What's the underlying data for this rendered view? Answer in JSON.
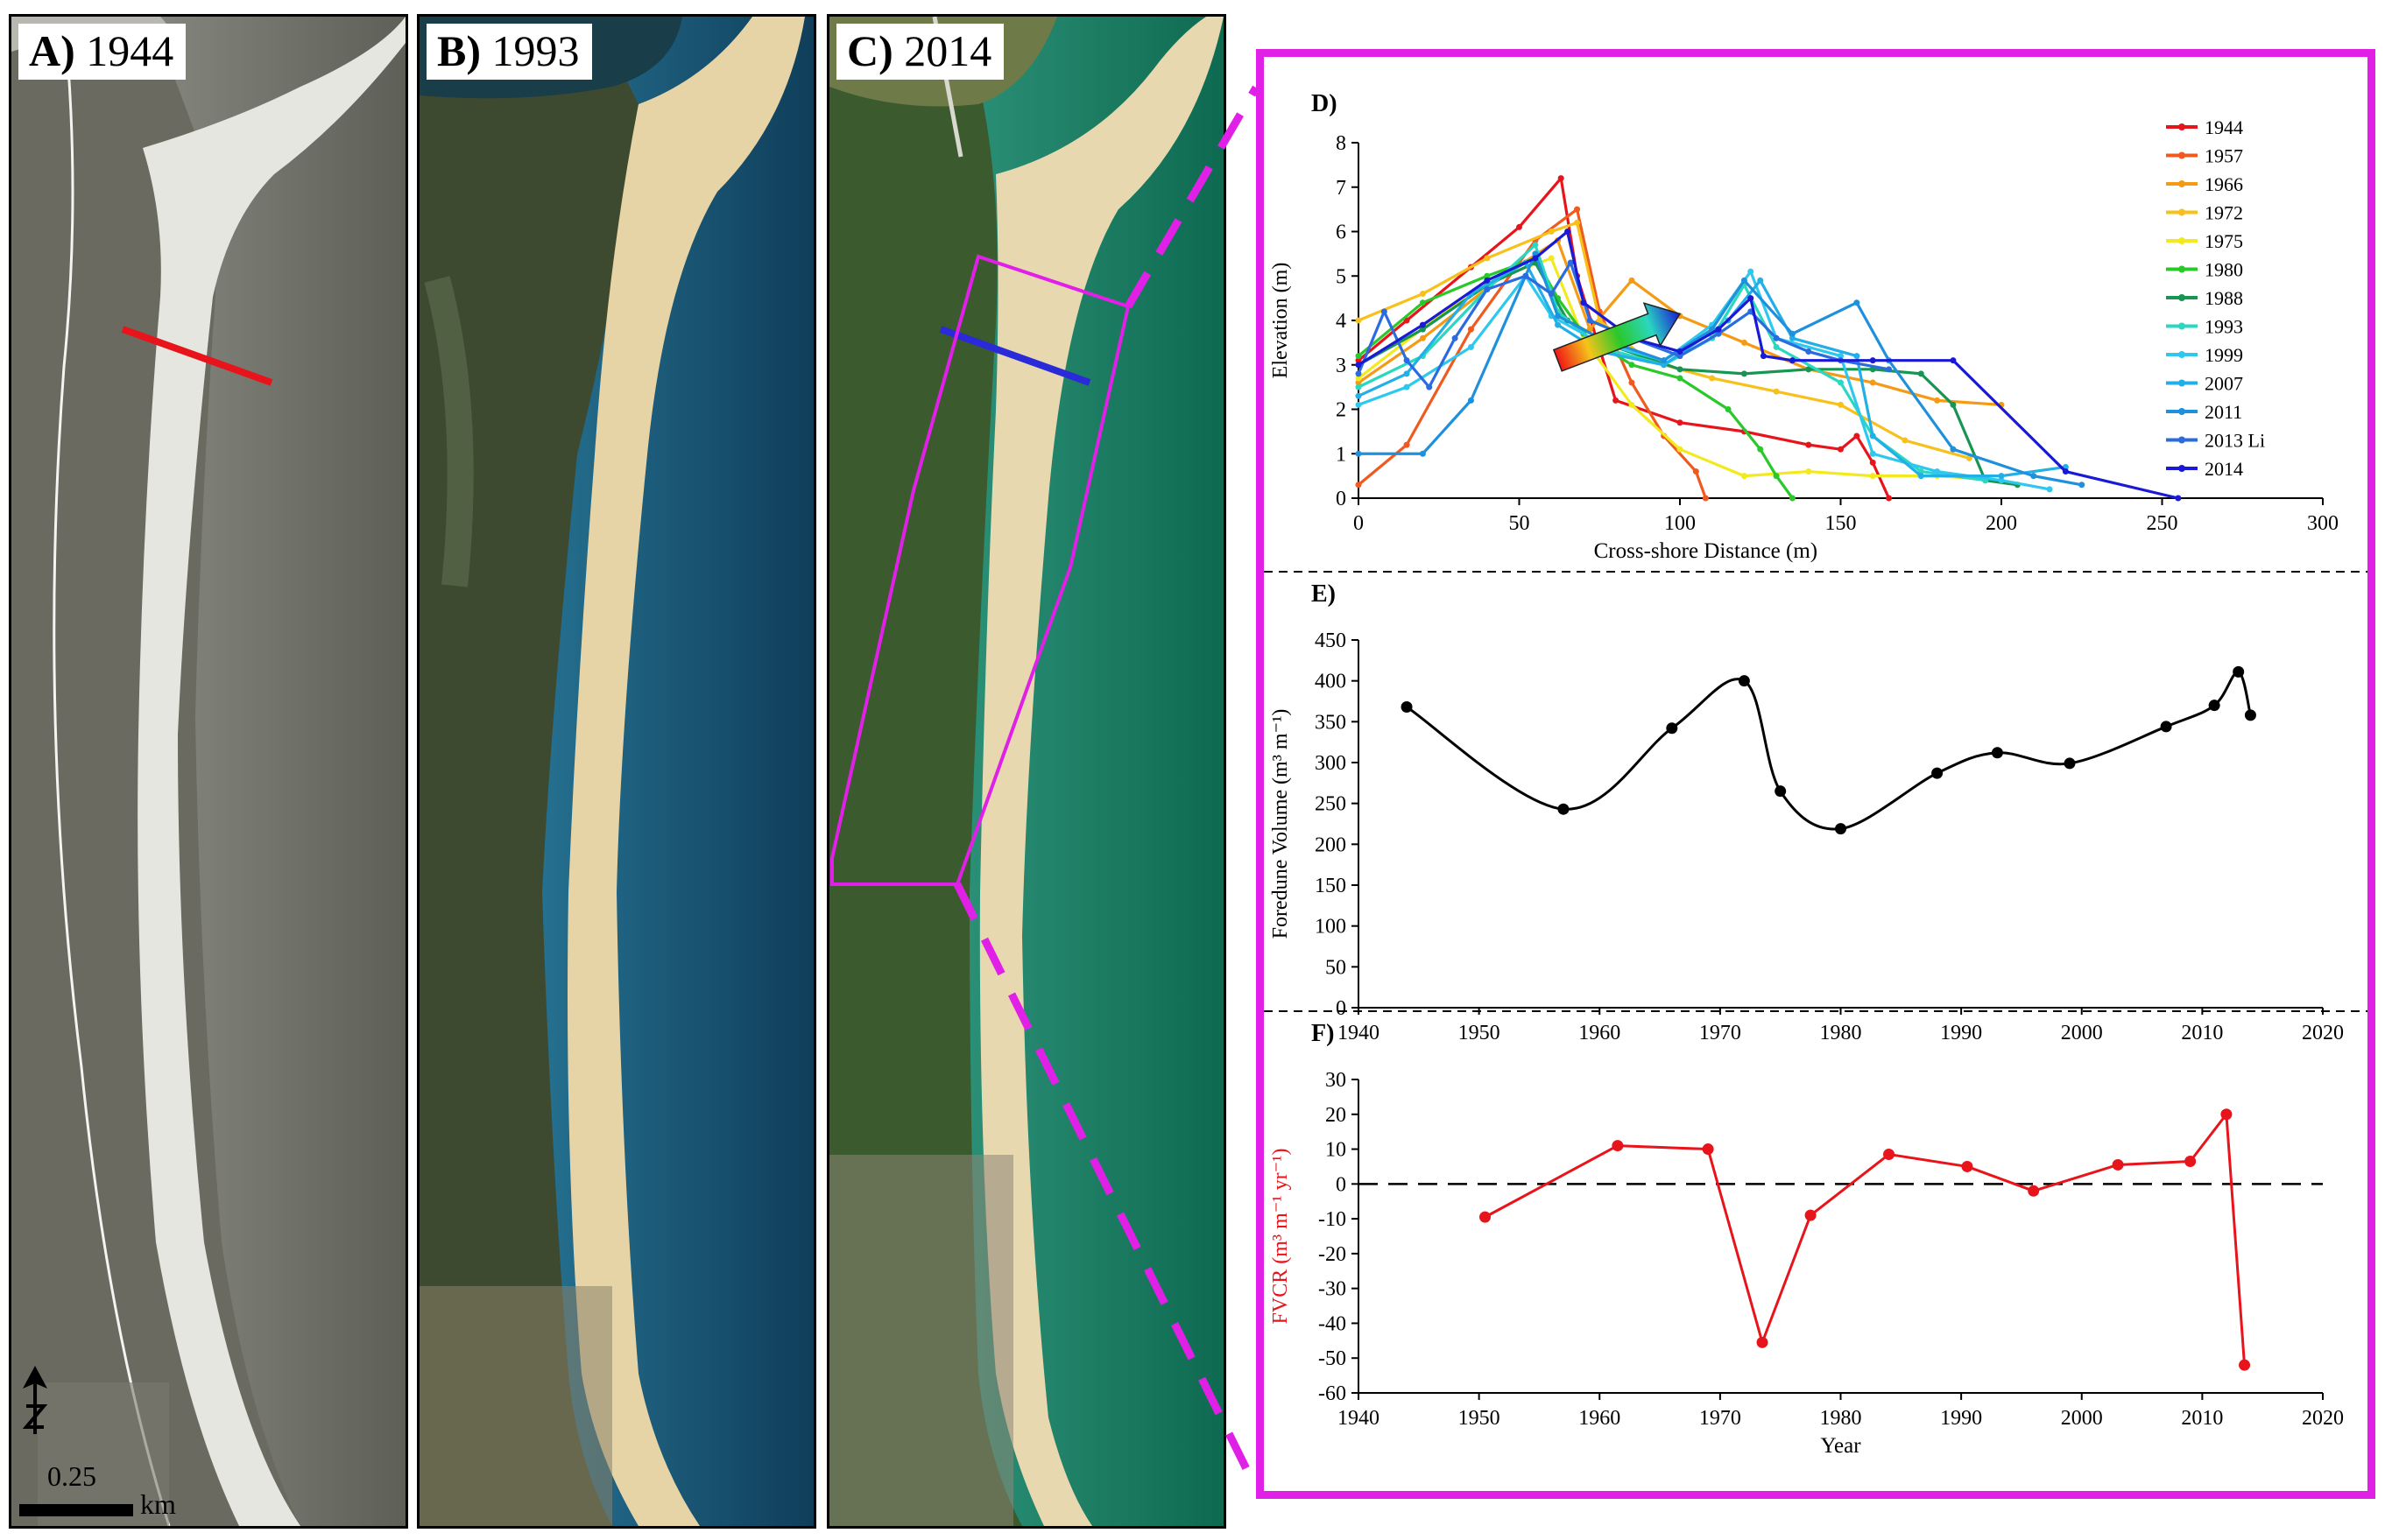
{
  "colors": {
    "magenta": "#e020e6",
    "fvcr": "#e8141b",
    "arrow": "#1a1ad6",
    "transect_1944": "#e8141b",
    "transect_2014": "#2a2ad8"
  },
  "panels": [
    {
      "letter": "A)",
      "year": "1944"
    },
    {
      "letter": "B)",
      "year": "1993"
    },
    {
      "letter": "C)",
      "year": "2014"
    }
  ],
  "scale": {
    "value": "0.25",
    "unit": "km"
  },
  "north_label": "N",
  "chart_data": [
    {
      "panel": "D)",
      "type": "line",
      "xlabel": "Cross-shore Distance  (m)",
      "ylabel": "Elevation  (m)",
      "xlim": [
        0,
        300
      ],
      "ylim": [
        0,
        8
      ],
      "xticks": [
        0,
        50,
        100,
        150,
        200,
        250,
        300
      ],
      "yticks": [
        0,
        1,
        2,
        3,
        4,
        5,
        6,
        7,
        8
      ],
      "legend": "top-right",
      "series": [
        {
          "name": "1944",
          "color": "#e8141b",
          "x": [
            0,
            15,
            35,
            50,
            63,
            68,
            80,
            100,
            120,
            140,
            150,
            155,
            160,
            165
          ],
          "y": [
            3.1,
            4.0,
            5.2,
            6.1,
            7.2,
            5.0,
            2.2,
            1.7,
            1.5,
            1.2,
            1.1,
            1.4,
            0.8,
            0
          ]
        },
        {
          "name": "1957",
          "color": "#f05a1e",
          "x": [
            0,
            15,
            35,
            55,
            68,
            75,
            85,
            95,
            105,
            108
          ],
          "y": [
            0.3,
            1.2,
            3.8,
            5.8,
            6.5,
            4.2,
            2.6,
            1.4,
            0.6,
            0
          ]
        },
        {
          "name": "1966",
          "color": "#f59a14",
          "x": [
            0,
            20,
            45,
            62,
            72,
            85,
            100,
            120,
            140,
            160,
            180,
            200
          ],
          "y": [
            2.6,
            3.6,
            5.0,
            5.8,
            3.8,
            4.9,
            4.1,
            3.5,
            2.9,
            2.6,
            2.2,
            2.1
          ]
        },
        {
          "name": "1972",
          "color": "#f8c01a",
          "x": [
            0,
            20,
            40,
            60,
            68,
            75,
            90,
            110,
            130,
            150,
            170,
            190
          ],
          "y": [
            4.0,
            4.6,
            5.4,
            6.0,
            6.2,
            4.0,
            3.1,
            2.7,
            2.4,
            2.1,
            1.3,
            0.9
          ]
        },
        {
          "name": "1975",
          "color": "#f2ea1e",
          "x": [
            0,
            25,
            45,
            60,
            70,
            85,
            100,
            120,
            140,
            160,
            180,
            200
          ],
          "y": [
            2.7,
            4.1,
            5.0,
            5.4,
            3.6,
            2.1,
            1.1,
            0.5,
            0.6,
            0.5,
            0.5,
            0.4
          ]
        },
        {
          "name": "1980",
          "color": "#2ac82a",
          "x": [
            0,
            20,
            40,
            55,
            62,
            70,
            85,
            100,
            115,
            125,
            130,
            135
          ],
          "y": [
            3.2,
            4.4,
            5.0,
            5.4,
            4.5,
            3.7,
            3.0,
            2.7,
            2.0,
            1.1,
            0.5,
            0
          ]
        },
        {
          "name": "1988",
          "color": "#179652",
          "x": [
            0,
            20,
            40,
            55,
            65,
            80,
            100,
            120,
            140,
            160,
            175,
            185,
            195,
            205
          ],
          "y": [
            3.0,
            3.8,
            4.8,
            5.3,
            4.0,
            3.4,
            2.9,
            2.8,
            2.9,
            2.9,
            2.8,
            2.1,
            0.4,
            0.3
          ]
        },
        {
          "name": "1993",
          "color": "#2ad7c0",
          "x": [
            0,
            20,
            40,
            55,
            62,
            75,
            95,
            110,
            120,
            130,
            150,
            160,
            175,
            195
          ],
          "y": [
            2.5,
            3.2,
            4.7,
            5.7,
            4.2,
            3.4,
            3.0,
            3.6,
            4.8,
            3.4,
            2.6,
            1.4,
            0.6,
            0.4
          ]
        },
        {
          "name": "1999",
          "color": "#2ec8ee",
          "x": [
            0,
            15,
            35,
            52,
            60,
            75,
            95,
            110,
            122,
            130,
            150,
            160,
            180,
            200,
            215
          ],
          "y": [
            2.1,
            2.5,
            3.4,
            5.0,
            4.1,
            3.5,
            3.1,
            3.9,
            5.1,
            3.6,
            3.2,
            1.0,
            0.6,
            0.4,
            0.2
          ]
        },
        {
          "name": "2007",
          "color": "#22aee6",
          "x": [
            0,
            15,
            35,
            52,
            62,
            75,
            95,
            115,
            125,
            135,
            155,
            160,
            175,
            200,
            220
          ],
          "y": [
            2.3,
            2.8,
            4.6,
            5.3,
            3.9,
            3.3,
            3.0,
            4.0,
            4.9,
            3.6,
            3.2,
            1.4,
            0.5,
            0.5,
            0.7
          ]
        },
        {
          "name": "2011",
          "color": "#1e90dc",
          "x": [
            0,
            20,
            35,
            55,
            62,
            75,
            95,
            110,
            120,
            135,
            155,
            165,
            185,
            210,
            225
          ],
          "y": [
            1.0,
            1.0,
            2.2,
            5.5,
            4.1,
            3.6,
            3.1,
            3.8,
            4.9,
            3.7,
            4.4,
            3.1,
            1.1,
            0.5,
            0.3
          ]
        },
        {
          "name": "2013 Li",
          "color": "#2a6be0",
          "x": [
            0,
            8,
            15,
            22,
            30,
            40,
            52,
            60,
            66,
            72,
            85,
            100,
            112,
            122,
            130,
            140,
            150,
            165
          ],
          "y": [
            2.8,
            4.2,
            3.1,
            2.5,
            3.6,
            4.7,
            5.0,
            4.6,
            5.3,
            4.0,
            3.6,
            3.2,
            3.7,
            4.2,
            3.6,
            3.3,
            3.1,
            2.9
          ]
        },
        {
          "name": "2014",
          "color": "#1a1ad6",
          "x": [
            0,
            20,
            40,
            55,
            65,
            70,
            85,
            100,
            112,
            122,
            126,
            135,
            160,
            185,
            220,
            255
          ],
          "y": [
            3.0,
            3.9,
            4.9,
            5.4,
            6.0,
            4.4,
            3.6,
            3.3,
            3.8,
            4.5,
            3.2,
            3.1,
            3.1,
            3.1,
            0.6,
            0.0
          ]
        }
      ]
    },
    {
      "panel": "E)",
      "type": "line",
      "xlabel": "",
      "ylabel": "Foredune Volume  (m³ m⁻¹)",
      "xlim": [
        1940,
        2020
      ],
      "ylim": [
        0,
        450
      ],
      "xticks": [
        1940,
        1950,
        1960,
        1970,
        1980,
        1990,
        2000,
        2010,
        2020
      ],
      "yticks": [
        0,
        50,
        100,
        150,
        200,
        250,
        300,
        350,
        400,
        450
      ],
      "series": [
        {
          "name": "Foredune Volume",
          "color": "#000000",
          "x": [
            1944,
            1957,
            1966,
            1972,
            1975,
            1980,
            1988,
            1993,
            1999,
            2007,
            2011,
            2013,
            2014
          ],
          "y": [
            368,
            243,
            342,
            400,
            265,
            219,
            287,
            312,
            299,
            344,
            370,
            411,
            358
          ]
        }
      ]
    },
    {
      "panel": "F)",
      "type": "line",
      "xlabel": "Year",
      "ylabel": "FVCR  (m³ m⁻¹ yr⁻¹)",
      "xlim": [
        1940,
        2020
      ],
      "ylim": [
        -60,
        30
      ],
      "xticks": [
        1940,
        1950,
        1960,
        1970,
        1980,
        1990,
        2000,
        2010,
        2020
      ],
      "yticks": [
        -60,
        -50,
        -40,
        -30,
        -20,
        -10,
        0,
        10,
        20,
        30
      ],
      "reference_line": 0,
      "series": [
        {
          "name": "FVCR",
          "color": "#e8141b",
          "x": [
            1950.5,
            1961.5,
            1969,
            1973.5,
            1977.5,
            1984,
            1990.5,
            1996,
            2003,
            2009,
            2012,
            2013.5
          ],
          "y": [
            -9.5,
            11,
            10,
            -45.5,
            -9,
            8.5,
            5,
            -2,
            5.5,
            6.5,
            20,
            -52
          ]
        }
      ]
    }
  ]
}
